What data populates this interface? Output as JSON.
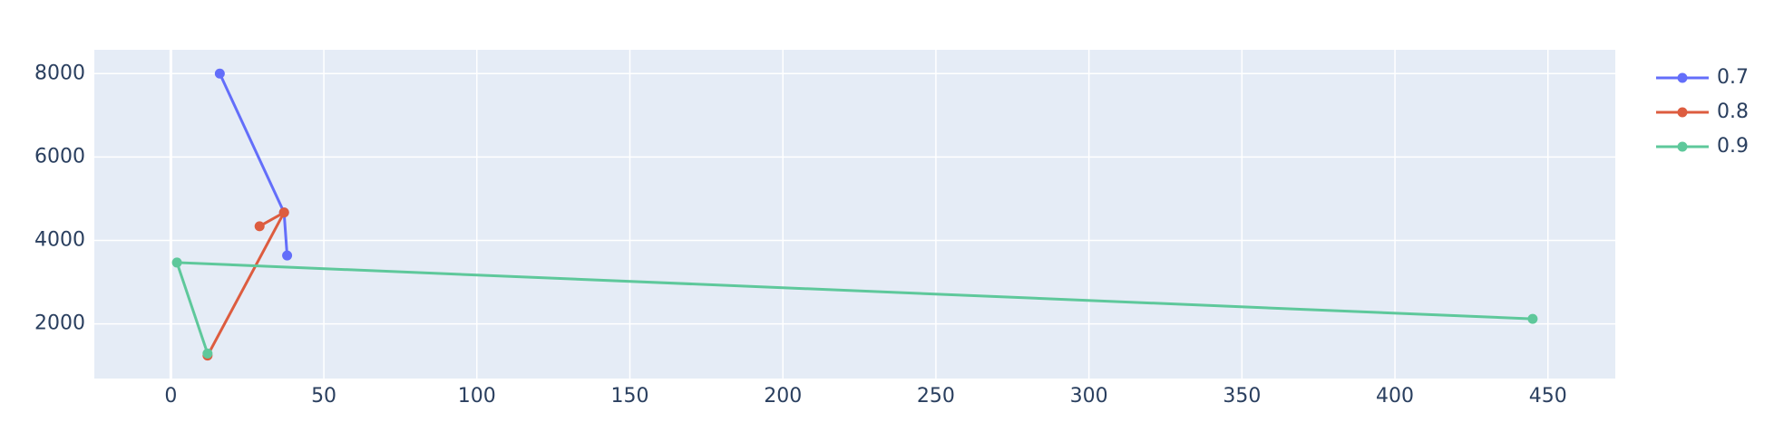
{
  "chart_data": {
    "type": "line",
    "series": [
      {
        "name": "0.7",
        "color": "#636efa",
        "x": [
          16,
          37,
          38
        ],
        "values": [
          8000,
          4670,
          3640
        ]
      },
      {
        "name": "0.8",
        "color": "#dd5c3f",
        "x": [
          29,
          37,
          12
        ],
        "values": [
          4340,
          4670,
          1240
        ]
      },
      {
        "name": "0.9",
        "color": "#5ec89b",
        "x": [
          12,
          2,
          445
        ],
        "values": [
          1290,
          3470,
          2120
        ]
      }
    ],
    "xlim": [
      -25,
      472
    ],
    "xticks": [
      0,
      50,
      100,
      150,
      200,
      250,
      300,
      350,
      400,
      450
    ],
    "ylim": [
      690,
      8570
    ],
    "yticks": [
      2000,
      4000,
      6000,
      8000
    ],
    "grid": true,
    "legend": "right"
  }
}
